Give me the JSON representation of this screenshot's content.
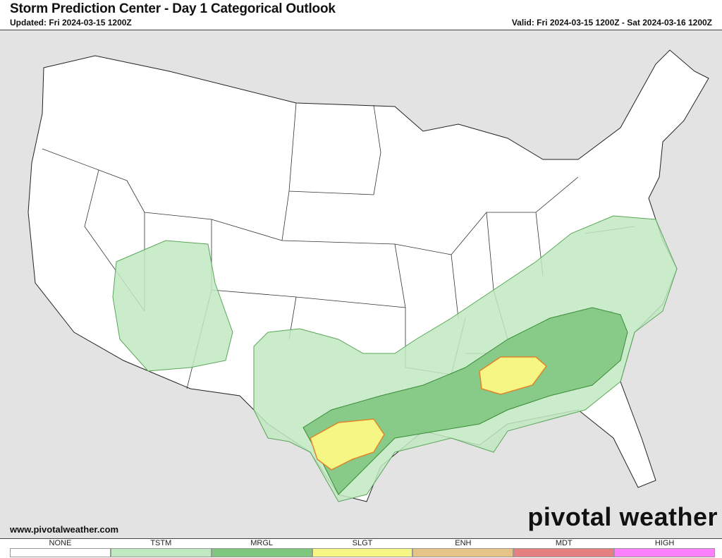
{
  "header": {
    "title": "Storm Prediction Center - Day 1 Categorical Outlook",
    "updated": "Updated: Fri 2024-03-15 1200Z",
    "valid": "Valid: Fri 2024-03-15 1200Z - Sat 2024-03-16 1200Z"
  },
  "footer": {
    "site": "www.pivotalweather.com",
    "logo": "pivotal weather"
  },
  "legend": [
    {
      "label": "NONE",
      "color": "#ffffff"
    },
    {
      "label": "TSTM",
      "color": "#c1e9c1"
    },
    {
      "label": "MRGL",
      "color": "#7dc67d"
    },
    {
      "label": "SLGT",
      "color": "#f6f684"
    },
    {
      "label": "ENH",
      "color": "#e6c386"
    },
    {
      "label": "MDT",
      "color": "#e67f7f"
    },
    {
      "label": "HIGH",
      "color": "#ff80ff"
    }
  ]
}
